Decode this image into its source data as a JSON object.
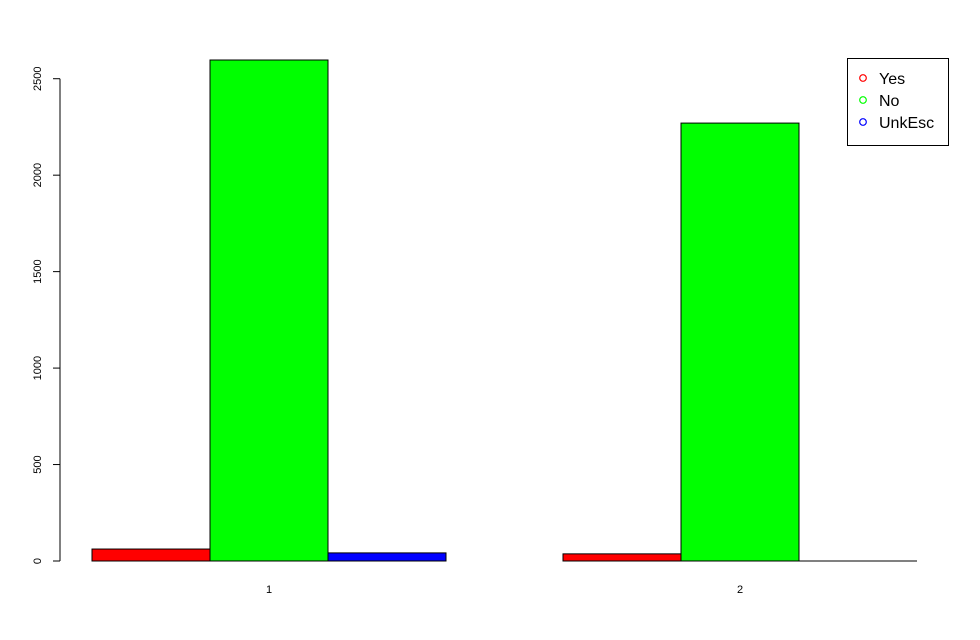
{
  "chart_data": {
    "type": "bar",
    "categories": [
      "1",
      "2"
    ],
    "series": [
      {
        "name": "Yes",
        "color": "#ff0000",
        "values": [
          62,
          37
        ]
      },
      {
        "name": "No",
        "color": "#00ff00",
        "values": [
          2597,
          2270
        ]
      },
      {
        "name": "UnkEsc",
        "color": "#0000ff",
        "values": [
          42,
          0
        ]
      }
    ],
    "y_ticks": [
      "0",
      "500",
      "1000",
      "1500",
      "2000",
      "2500"
    ],
    "y_tick_values": [
      0,
      500,
      1000,
      1500,
      2000,
      2500
    ],
    "ylim": [
      0,
      2597
    ],
    "title": "",
    "xlabel": "",
    "ylabel": "",
    "legend_position": "top-right",
    "grid": false
  }
}
